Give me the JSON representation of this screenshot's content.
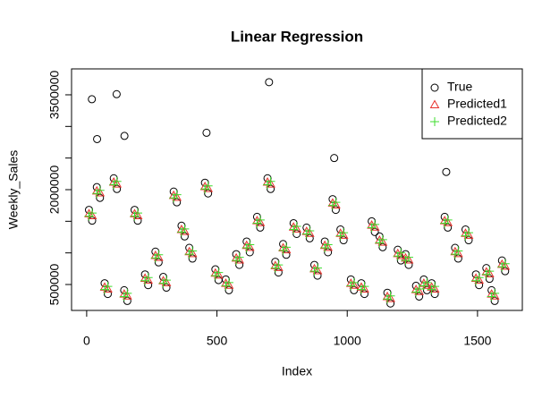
{
  "chart_data": {
    "type": "scatter",
    "title": "Linear Regression",
    "x_label": "Index",
    "y_label": "Weekly_Sales",
    "xlim": [
      -58,
      1672
    ],
    "ylim": [
      90000,
      3910000
    ],
    "xticks": [
      0,
      500,
      1000,
      1500
    ],
    "yticks": [
      500000,
      2000000,
      3500000
    ],
    "yticks_unlabeled": [
      1000000,
      1500000,
      2500000,
      3000000
    ],
    "legend": "topright",
    "x": [
      9,
      21,
      39,
      51,
      69,
      81,
      104,
      116,
      144,
      156,
      184,
      196,
      224,
      236,
      264,
      276,
      294,
      306,
      334,
      346,
      364,
      376,
      394,
      406,
      454,
      466,
      494,
      506,
      534,
      546,
      574,
      586,
      614,
      626,
      654,
      666,
      694,
      706,
      724,
      736,
      754,
      766,
      794,
      806,
      844,
      856,
      874,
      886,
      914,
      926,
      944,
      956,
      974,
      986,
      1014,
      1026,
      1054,
      1066,
      1094,
      1106,
      1124,
      1136,
      1154,
      1166,
      1194,
      1206,
      1224,
      1236,
      1264,
      1276,
      1294,
      1306,
      1324,
      1336,
      1374,
      1386,
      1414,
      1426,
      1454,
      1466,
      1494,
      1506,
      1534,
      1546,
      1554,
      1566,
      1594,
      1606,
      20,
      40,
      115,
      145,
      460,
      700,
      950,
      1380
    ],
    "series": [
      {
        "name": "True",
        "color": "#000000",
        "marker": "circle",
        "values": [
          1680000,
          1510000,
          2040000,
          1870000,
          520000,
          350000,
          2180000,
          2010000,
          410000,
          240000,
          1680000,
          1510000,
          660000,
          490000,
          1020000,
          850000,
          620000,
          450000,
          1970000,
          1800000,
          1430000,
          1260000,
          1080000,
          910000,
          2110000,
          1940000,
          740000,
          570000,
          580000,
          410000,
          980000,
          810000,
          1180000,
          1010000,
          1570000,
          1400000,
          2180000,
          2010000,
          860000,
          690000,
          1140000,
          970000,
          1470000,
          1300000,
          1400000,
          1230000,
          810000,
          640000,
          1180000,
          1010000,
          1850000,
          1680000,
          1370000,
          1200000,
          580000,
          410000,
          520000,
          350000,
          1500000,
          1330000,
          1260000,
          1090000,
          370000,
          200000,
          1050000,
          880000,
          980000,
          810000,
          480000,
          310000,
          580000,
          410000,
          520000,
          350000,
          1570000,
          1400000,
          1080000,
          910000,
          1370000,
          1200000,
          660000,
          490000,
          760000,
          590000,
          410000,
          240000,
          880000,
          710000,
          3430000,
          2800000,
          3510000,
          2850000,
          2900000,
          3700000,
          2500000,
          2280000
        ]
      },
      {
        "name": "Predicted1",
        "color": "#e8302a",
        "marker": "triangle",
        "values": [
          1620000,
          1590000,
          1980000,
          1950000,
          460000,
          430000,
          2120000,
          2090000,
          350000,
          320000,
          1620000,
          1590000,
          600000,
          570000,
          960000,
          930000,
          560000,
          530000,
          1910000,
          1880000,
          1370000,
          1340000,
          1020000,
          990000,
          2050000,
          2020000,
          680000,
          650000,
          520000,
          490000,
          920000,
          890000,
          1120000,
          1090000,
          1510000,
          1480000,
          2120000,
          2090000,
          800000,
          770000,
          1080000,
          1050000,
          1410000,
          1380000,
          1340000,
          1310000,
          750000,
          720000,
          1120000,
          1090000,
          1790000,
          1760000,
          1310000,
          1280000,
          520000,
          490000,
          460000,
          430000,
          1440000,
          1410000,
          1200000,
          1170000,
          310000,
          280000,
          990000,
          960000,
          920000,
          890000,
          420000,
          390000,
          520000,
          490000,
          460000,
          430000,
          1510000,
          1480000,
          1020000,
          990000,
          1310000,
          1280000,
          600000,
          570000,
          700000,
          670000,
          350000,
          320000,
          820000,
          790000,
          null,
          null,
          null,
          null,
          null,
          null,
          null,
          null
        ]
      },
      {
        "name": "Predicted2",
        "color": "#3ddc2e",
        "marker": "plus",
        "values": [
          1580000,
          1630000,
          1940000,
          1990000,
          420000,
          470000,
          2080000,
          2130000,
          310000,
          360000,
          1580000,
          1630000,
          560000,
          610000,
          920000,
          970000,
          520000,
          570000,
          1870000,
          1920000,
          1330000,
          1380000,
          980000,
          1030000,
          2010000,
          2060000,
          640000,
          690000,
          480000,
          530000,
          880000,
          930000,
          1080000,
          1130000,
          1470000,
          1520000,
          2080000,
          2130000,
          760000,
          810000,
          1040000,
          1090000,
          1370000,
          1420000,
          1300000,
          1350000,
          710000,
          760000,
          1080000,
          1130000,
          1750000,
          1800000,
          1270000,
          1320000,
          480000,
          530000,
          420000,
          470000,
          1400000,
          1450000,
          1160000,
          1210000,
          270000,
          320000,
          950000,
          1000000,
          880000,
          930000,
          380000,
          430000,
          480000,
          530000,
          420000,
          470000,
          1470000,
          1520000,
          980000,
          1030000,
          1270000,
          1320000,
          560000,
          610000,
          660000,
          710000,
          310000,
          360000,
          780000,
          830000,
          null,
          null,
          null,
          null,
          null,
          null,
          null,
          null
        ]
      }
    ]
  }
}
